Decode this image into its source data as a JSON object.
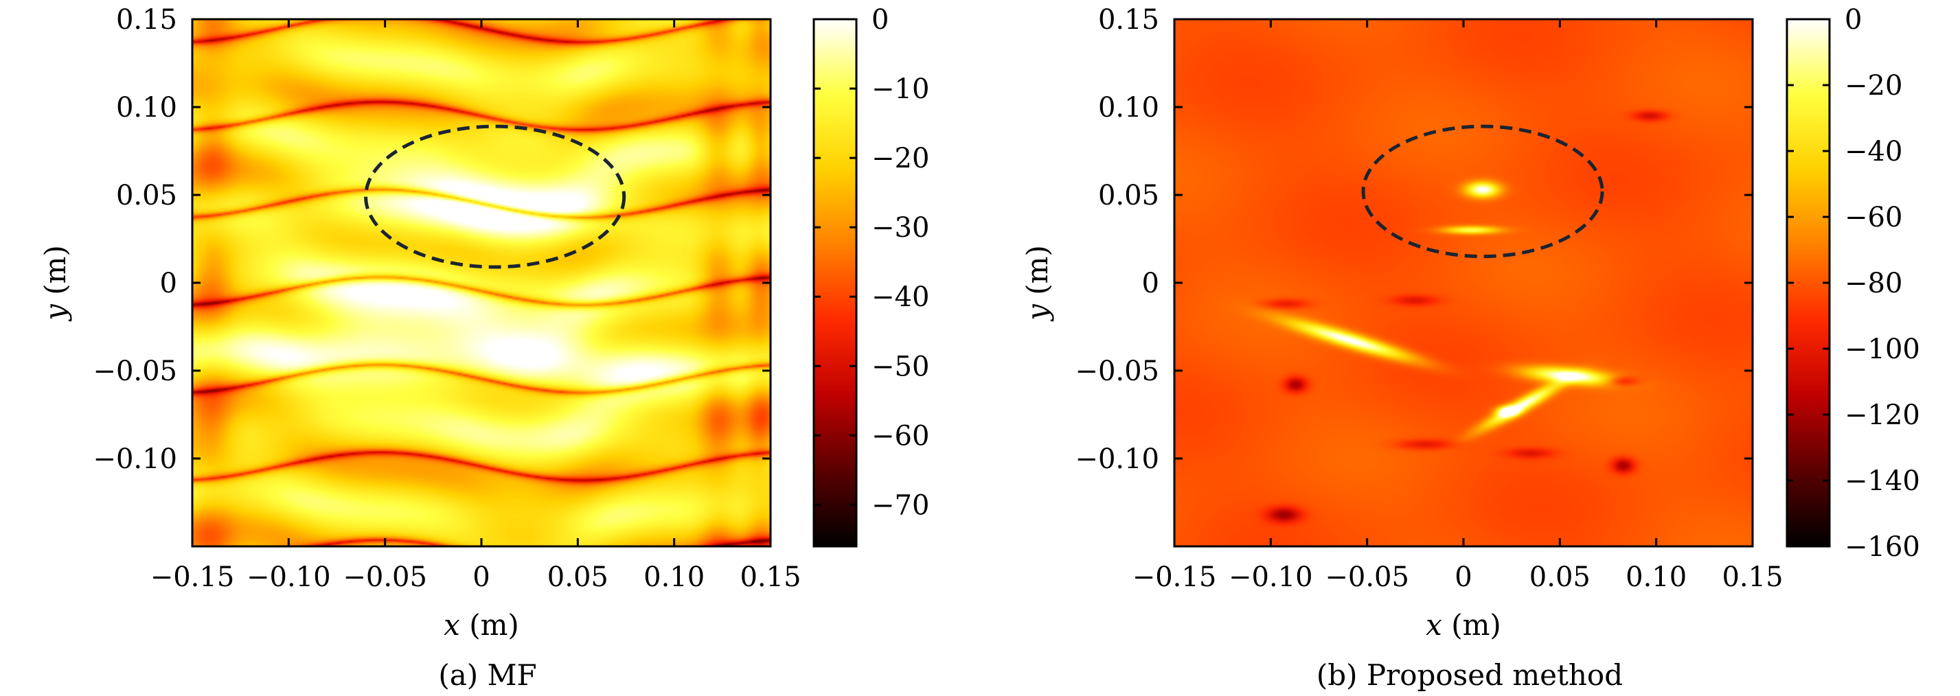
{
  "figure": {
    "colormap": [
      "#000000",
      "#5a0000",
      "#c00000",
      "#ff2a00",
      "#ff8000",
      "#ffd000",
      "#ffff40",
      "#ffffff"
    ]
  },
  "chart_data": [
    {
      "type": "heatmap",
      "caption": "(a) MF",
      "xlabel_var": "x",
      "xlabel_unit": " (m)",
      "ylabel_var": "y",
      "ylabel_unit": " (m)",
      "xlim": [
        -0.15,
        0.15
      ],
      "ylim": [
        -0.15,
        0.15
      ],
      "xticks": [
        -0.15,
        -0.1,
        -0.05,
        0,
        0.05,
        0.1,
        0.15
      ],
      "xtick_labels": [
        "−0.15",
        "−0.10",
        "−0.05",
        "0",
        "0.05",
        "0.10",
        "0.15"
      ],
      "yticks": [
        0.15,
        0.1,
        0.05,
        0,
        -0.05,
        -0.1
      ],
      "ytick_labels": [
        "0.15",
        "0.10",
        "0.05",
        "0",
        "−0.05",
        "−0.10"
      ],
      "colorbar": {
        "range": [
          -76,
          0
        ],
        "ticks": [
          0,
          -10,
          -20,
          -30,
          -40,
          -50,
          -60,
          -70
        ],
        "tick_labels": [
          "0",
          "−10",
          "−20",
          "−30",
          "−40",
          "−50",
          "−60",
          "−70"
        ]
      },
      "ellipse": {
        "cx": 0.007,
        "cy": 0.049,
        "rx": 0.067,
        "ry": 0.04,
        "style": "dashed"
      },
      "field": {
        "model": "stripes",
        "base": -18,
        "min_value": -76,
        "blobs": [
          {
            "x": 0.005,
            "y": 0.05,
            "sx": 0.055,
            "sy": 0.018,
            "amp": 18
          },
          {
            "x": -0.06,
            "y": -0.033,
            "sx": 0.04,
            "sy": 0.02,
            "amp": 14
          },
          {
            "x": 0.05,
            "y": -0.05,
            "sx": 0.045,
            "sy": 0.022,
            "amp": 14
          },
          {
            "x": -0.02,
            "y": -0.01,
            "sx": 0.08,
            "sy": 0.03,
            "amp": 6
          }
        ]
      }
    },
    {
      "type": "heatmap",
      "caption": "(b) Proposed method",
      "xlabel_var": "x",
      "xlabel_unit": " (m)",
      "ylabel_var": "y",
      "ylabel_unit": " (m)",
      "xlim": [
        -0.15,
        0.15
      ],
      "ylim": [
        -0.15,
        0.15
      ],
      "xticks": [
        -0.15,
        -0.1,
        -0.05,
        0,
        0.05,
        0.1,
        0.15
      ],
      "xtick_labels": [
        "−0.15",
        "−0.10",
        "−0.05",
        "0",
        "0.05",
        "0.10",
        "0.15"
      ],
      "yticks": [
        0.15,
        0.1,
        0.05,
        0,
        -0.05,
        -0.1
      ],
      "ytick_labels": [
        "0.15",
        "0.10",
        "0.05",
        "0",
        "−0.05",
        "−0.10"
      ],
      "colorbar": {
        "range": [
          -160,
          0
        ],
        "ticks": [
          0,
          -20,
          -40,
          -60,
          -80,
          -100,
          -120,
          -140,
          -160
        ],
        "tick_labels": [
          "0",
          "−20",
          "−40",
          "−60",
          "−80",
          "−100",
          "−120",
          "−140",
          "−160"
        ]
      },
      "ellipse": {
        "cx": 0.01,
        "cy": 0.052,
        "rx": 0.062,
        "ry": 0.037,
        "style": "dashed"
      },
      "field": {
        "model": "sparse",
        "base": -80,
        "min_value": -160,
        "hot_spots": [
          {
            "x": 0.01,
            "y": 0.053,
            "sx": 0.006,
            "sy": 0.003,
            "amp": 82
          },
          {
            "x": 0.004,
            "y": 0.03,
            "sx": 0.01,
            "sy": 0.0015,
            "amp": 60
          },
          {
            "x": -0.058,
            "y": -0.033,
            "sx": 0.022,
            "sy": 0.003,
            "amp": 82,
            "slope": -0.32
          },
          {
            "x": 0.055,
            "y": -0.053,
            "sx": 0.016,
            "sy": 0.003,
            "amp": 82,
            "slope": -0.1
          },
          {
            "x": 0.03,
            "y": -0.07,
            "sx": 0.014,
            "sy": 0.003,
            "amp": 80,
            "slope": 0.6
          },
          {
            "x": 0.023,
            "y": -0.073,
            "sx": 0.004,
            "sy": 0.002,
            "amp": 70
          }
        ],
        "cold_spots": [
          {
            "x": 0.097,
            "y": 0.095,
            "sx": 0.006,
            "sy": 0.002,
            "amp": 28
          },
          {
            "x": -0.092,
            "y": -0.012,
            "sx": 0.008,
            "sy": 0.002,
            "amp": 22
          },
          {
            "x": -0.025,
            "y": -0.01,
            "sx": 0.008,
            "sy": 0.002,
            "amp": 22
          },
          {
            "x": -0.087,
            "y": -0.058,
            "sx": 0.004,
            "sy": 0.003,
            "amp": 40
          },
          {
            "x": 0.082,
            "y": -0.056,
            "sx": 0.006,
            "sy": 0.002,
            "amp": 30
          },
          {
            "x": -0.02,
            "y": -0.092,
            "sx": 0.01,
            "sy": 0.002,
            "amp": 22
          },
          {
            "x": 0.035,
            "y": -0.097,
            "sx": 0.008,
            "sy": 0.002,
            "amp": 22
          },
          {
            "x": 0.083,
            "y": -0.104,
            "sx": 0.004,
            "sy": 0.003,
            "amp": 40
          },
          {
            "x": -0.093,
            "y": -0.132,
            "sx": 0.006,
            "sy": 0.003,
            "amp": 40
          }
        ]
      }
    }
  ]
}
